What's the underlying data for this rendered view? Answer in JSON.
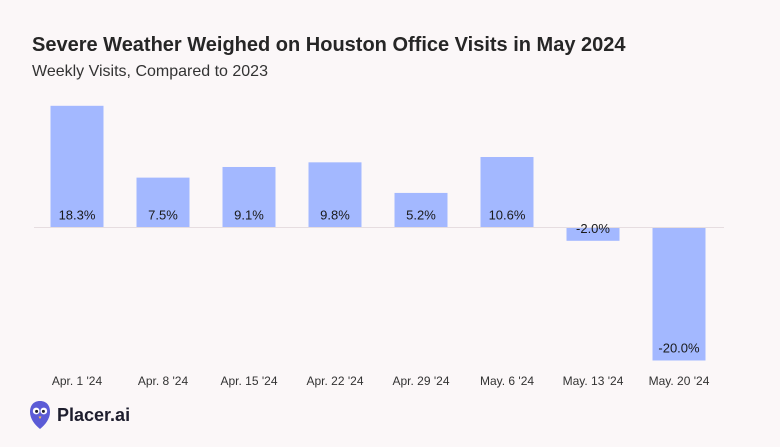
{
  "header": {
    "title": "Severe Weather Weighed on Houston Office Visits in May 2024",
    "subtitle": "Weekly Visits, Compared to 2023"
  },
  "chart_data": {
    "type": "bar",
    "title": "Severe Weather Weighed on Houston Office Visits in May 2024",
    "subtitle": "Weekly Visits, Compared to 2023",
    "xlabel": "",
    "ylabel": "",
    "categories": [
      "Apr. 1 '24",
      "Apr. 8 '24",
      "Apr. 15 '24",
      "Apr. 22 '24",
      "Apr. 29 '24",
      "May. 6 '24",
      "May. 13 '24",
      "May. 20 '24"
    ],
    "values": [
      18.3,
      7.5,
      9.1,
      9.8,
      5.2,
      10.6,
      -2.0,
      -20.0
    ],
    "data_labels": [
      "18.3%",
      "7.5%",
      "9.1%",
      "9.8%",
      "5.2%",
      "10.6%",
      "-2.0%",
      "-20.0%"
    ],
    "ylim": [
      -20,
      18.3
    ],
    "grid": false,
    "bar_color": "#a3b8ff"
  },
  "brand": {
    "name": "Placer.ai",
    "logo_icon": "placer-owl-icon",
    "logo_color": "#5b5bd6"
  }
}
